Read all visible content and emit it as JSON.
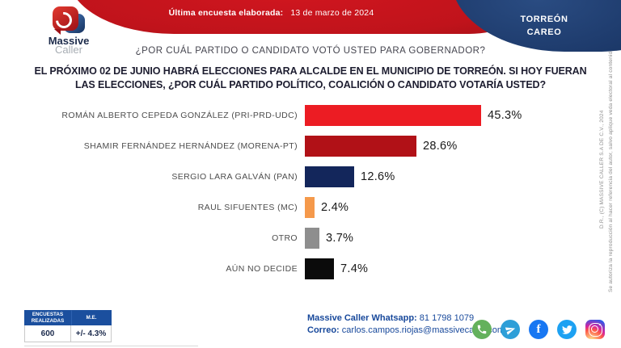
{
  "header": {
    "logo": {
      "line1": "Massive",
      "line2": "Caller"
    },
    "banner": {
      "label": "Última encuesta elaborada:",
      "date": "13 de marzo de 2024"
    },
    "badge": {
      "line1": "TORREÓN",
      "line2": "CAREO"
    }
  },
  "questions": {
    "q1": "¿POR CUÁL PARTIDO O CANDIDATO VOTÓ USTED PARA GOBERNADOR?",
    "q2_normal": "EL PRÓXIMO 02 DE JUNIO HABRÁ ELECCIONES PARA ALCALDE EN EL MUNICIPIO DE TORREÓN. SI HOY FUERAN LAS ELECCIONES, ",
    "q2_bold": "¿POR CUÁL PARTIDO POLÍTICO, COALICIÓN O CANDIDATO VOTARÍA USTED?"
  },
  "chart_data": {
    "type": "bar",
    "orientation": "horizontal",
    "title": "¿POR CUÁL PARTIDO POLÍTICO, COALICIÓN O CANDIDATO VOTARÍA USTED?",
    "categories": [
      "ROMÁN ALBERTO CEPEDA GONZÁLEZ (PRI-PRD-UDC)",
      "SHAMIR FERNÁNDEZ HERNÁNDEZ (MORENA-PT)",
      "SERGIO LARA GALVÁN (PAN)",
      "RAUL SIFUENTES (MC)",
      "OTRO",
      "AÚN NO DECIDE"
    ],
    "values": [
      45.3,
      28.6,
      12.6,
      2.4,
      3.7,
      7.4
    ],
    "value_labels": [
      "45.3%",
      "28.6%",
      "12.6%",
      "2.4%",
      "3.7%",
      "7.4%"
    ],
    "colors": [
      "#ec1c23",
      "#b11117",
      "#13265b",
      "#f5994b",
      "#8e8e8e",
      "#0b0b0b"
    ],
    "xlim": [
      0,
      50
    ],
    "grid": false,
    "legend": false,
    "value_labels_position": "end-of-bar"
  },
  "stats_table": {
    "headers": [
      "ENCUESTAS REALIZADAS",
      "M.E."
    ],
    "values": [
      "600",
      "+/- 4.3%"
    ]
  },
  "contact": {
    "whatsapp_label": "Massive Caller Whatsapp:",
    "whatsapp_number": "81 1798 1079",
    "email_label": "Correo:",
    "email": "carlos.campos.riojas@massivecaller.com"
  },
  "social_icons": [
    "whatsapp",
    "telegram",
    "facebook",
    "twitter",
    "instagram"
  ],
  "facebook_glyph": "f",
  "disclaimer": {
    "copyright": "D.R., (C) MASSIVE CALLER S.A DE C.V., 2024",
    "notice": "Se autoriza la reproducción al hacer referencia del autor, salvo aplique veda electoral al contenido."
  },
  "accent_colors": {
    "banner_red": "#c0131b",
    "badge_navy": "#1d3a6b",
    "table_header_blue": "#1b4f9e",
    "contact_blue": "#17489b"
  }
}
